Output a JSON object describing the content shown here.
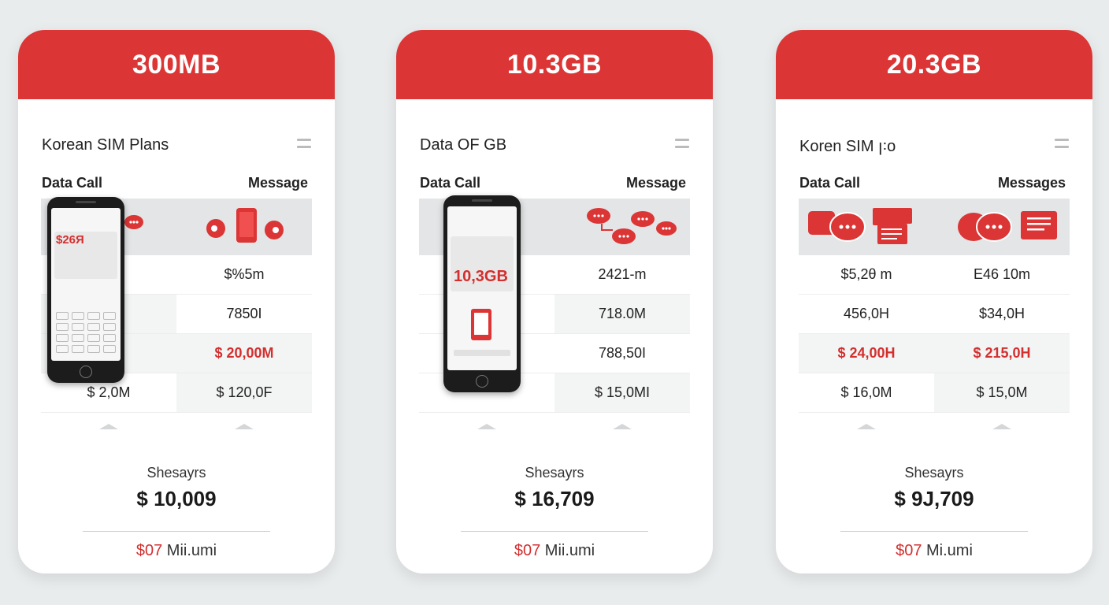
{
  "cards": [
    {
      "header": "300MB",
      "title": "Korean SIM Plans",
      "col_left": "Data Call",
      "col_right": "Message",
      "rows": [
        {
          "left": "",
          "right": "$%5m"
        },
        {
          "left": "",
          "right": "7850I"
        },
        {
          "left": "",
          "right": "$ 20,00M"
        },
        {
          "left": "$ 2,0M",
          "right": "$ 120,0F"
        }
      ],
      "phone_text": "$26Я",
      "footer_label": "Shesayrs",
      "footer_price": "$ 10,009",
      "note_highlight": "$07",
      "note_rest": " Mii.umi"
    },
    {
      "header": "10.3GB",
      "title": "Data OF GB",
      "col_left": "Data Call",
      "col_right": "Message",
      "rows": [
        {
          "left": "",
          "right": "2421-m"
        },
        {
          "left": "",
          "right": "718.0M"
        },
        {
          "left": "",
          "right": "788,50I"
        },
        {
          "left": "",
          "right": "$ 15,0MI"
        }
      ],
      "phone_text": "10,3GB",
      "footer_label": "Shesayrs",
      "footer_price": "$ 16,709",
      "note_highlight": "$07",
      "note_rest": " Mii.umi"
    },
    {
      "header": "20.3GB",
      "title": "Koren SIM ꞁ꞉o",
      "col_left": "Data Call",
      "col_right": "Messages",
      "rows": [
        {
          "left": "$5,2θ m",
          "right": "E46 10m"
        },
        {
          "left": "456,0H",
          "right": "$34,0H"
        },
        {
          "left": "$ 24,00H",
          "right": "$ 215,0H"
        },
        {
          "left": "$ 16,0M",
          "right": "$ 15,0M"
        }
      ],
      "footer_label": "Shesayrs",
      "footer_price": "$ 9J,709",
      "note_highlight": "$07",
      "note_rest": " Mi.umi"
    }
  ],
  "colors": {
    "accent": "#db3535",
    "text_red": "#d32f2f"
  },
  "icons": [
    "chat-bubble-icon",
    "smartphone-icon",
    "menu-icon",
    "caret-up-icon"
  ]
}
